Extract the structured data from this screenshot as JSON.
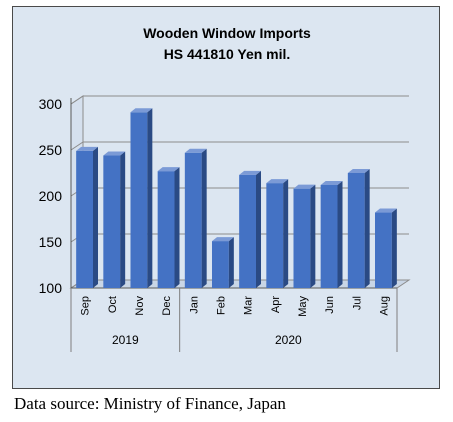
{
  "chart_data": {
    "type": "bar",
    "title": "Wooden Window Imports",
    "subtitle": "HS 441810 Yen mil.",
    "categories": [
      "Sep",
      "Oct",
      "Nov",
      "Dec",
      "Jan",
      "Feb",
      "Mar",
      "Apr",
      "May",
      "Jun",
      "Jul",
      "Aug"
    ],
    "groups": [
      {
        "label": "2019",
        "count": 4
      },
      {
        "label": "2020",
        "count": 8
      }
    ],
    "values": [
      249,
      244,
      291,
      227,
      247,
      151,
      223,
      214,
      208,
      212,
      225,
      182
    ],
    "ylim": [
      100,
      300
    ],
    "yticks": [
      100,
      150,
      200,
      250,
      300
    ],
    "xlabel": "",
    "ylabel": "",
    "grid": true,
    "style3d": true,
    "colors": {
      "bar_front": "#4472c4",
      "bar_side": "#2a4a84",
      "bar_top": "#7b9ad6",
      "background": "#dce6f1",
      "grid": "#8c8c8c"
    }
  },
  "source": "Data source: Ministry of Finance, Japan"
}
